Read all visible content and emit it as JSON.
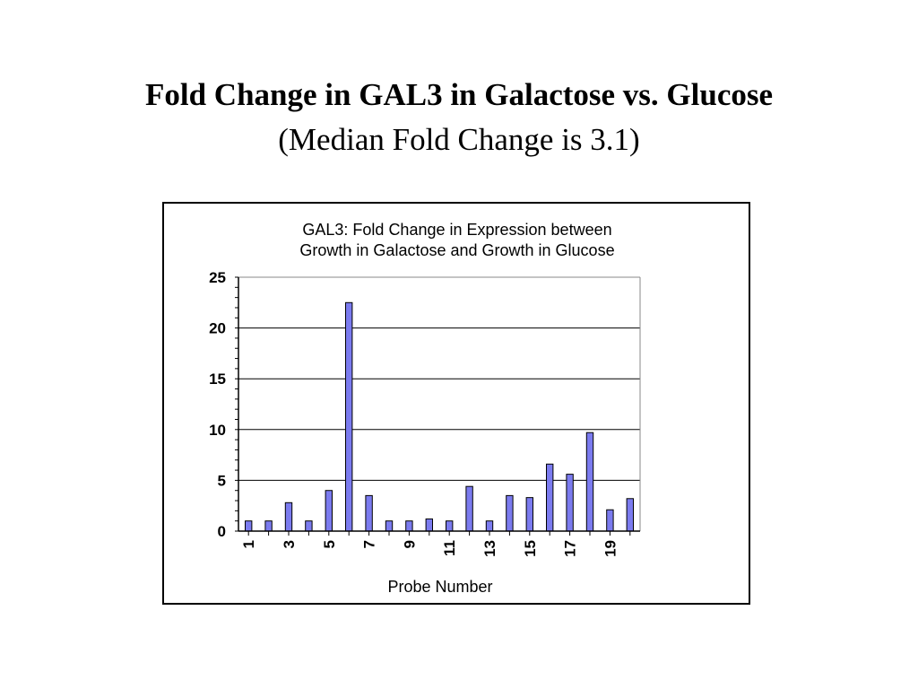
{
  "slide": {
    "title": "Fold Change in GAL3 in Galactose vs. Glucose",
    "subtitle": "(Median Fold Change is 3.1)"
  },
  "chart_data": {
    "type": "bar",
    "title_lines": [
      "GAL3:  Fold Change in Expression between",
      "Growth in Galactose and Growth in Glucose"
    ],
    "xlabel": "Probe Number",
    "ylabel": "",
    "ylim": [
      0,
      25
    ],
    "yticks": [
      0,
      5,
      10,
      15,
      20,
      25
    ],
    "categories": [
      "1",
      "2",
      "3",
      "4",
      "5",
      "6",
      "7",
      "8",
      "9",
      "10",
      "11",
      "12",
      "13",
      "14",
      "15",
      "16",
      "17",
      "18",
      "19",
      "20"
    ],
    "x_tick_labels_shown": [
      "1",
      "3",
      "5",
      "7",
      "9",
      "11",
      "13",
      "15",
      "17",
      "19"
    ],
    "values": [
      1.0,
      1.0,
      2.8,
      1.0,
      4.0,
      22.5,
      3.5,
      1.0,
      1.0,
      1.2,
      1.0,
      4.4,
      1.0,
      3.5,
      3.3,
      6.6,
      5.6,
      9.7,
      2.1,
      3.2
    ],
    "grid": true,
    "legend": "none",
    "bar_fill": "#7b7bef",
    "bar_stroke": "#000000"
  }
}
